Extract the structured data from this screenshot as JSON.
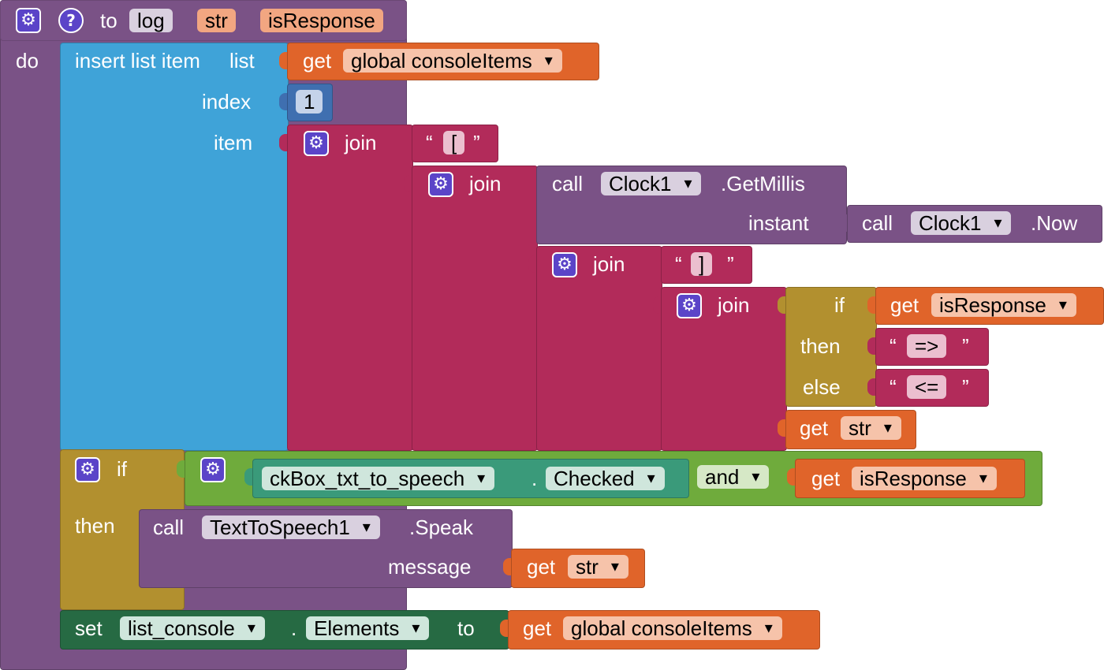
{
  "colors": {
    "procedure": "#7a5286",
    "list": "#3fa3d8",
    "math": "#3f6fb0",
    "text": "#b22b5a",
    "component": "#7a5286",
    "control": "#b2902f",
    "logic": "#6fab3c",
    "variable": "#e0642a",
    "setter": "#266a43",
    "field_light": "#d9d0df",
    "param_field": "#f2a681",
    "var_field": "#f6c3aa"
  },
  "icons": {
    "mutator": "gear-icon",
    "help": "question-mark-icon",
    "dropdown": "triangle-down-icon"
  },
  "procedure": {
    "to_label": "to",
    "name": "log",
    "params": [
      "str",
      "isResponse"
    ],
    "do_label": "do"
  },
  "insert": {
    "title": "insert list item",
    "list_label": "list",
    "index_label": "index",
    "item_label": "item",
    "get_label": "get",
    "list_var": "global consoleItems",
    "index_value": "1"
  },
  "join1": {
    "label": "join",
    "open_quote": "“",
    "close_quote": "”",
    "bracket_open": "[",
    "join2_label": "join",
    "call_label": "call",
    "clock1": "Clock1",
    "getmillis": ".GetMillis",
    "instant_label": "instant",
    "now": ".Now",
    "join3_label": "join",
    "bracket_close": "]",
    "join4_label": "join",
    "if_label": "if",
    "then_label": "then",
    "else_label": "else",
    "get_label": "get",
    "cond_var": "isResponse",
    "then_text": "=>",
    "else_text": "<=",
    "str_var": "str"
  },
  "if_block": {
    "if_label": "if",
    "then_label": "then",
    "component": "ckBox_txt_to_speech",
    "dot": ".",
    "property": "Checked",
    "and_label": "and",
    "get_label": "get",
    "var": "isResponse",
    "call_label": "call",
    "tts": "TextToSpeech1",
    "speak": ".Speak",
    "message_label": "message",
    "message_var": "str"
  },
  "set_block": {
    "set_label": "set",
    "component": "list_console",
    "dot": ".",
    "property": "Elements",
    "to_label": "to",
    "get_label": "get",
    "var": "global consoleItems"
  }
}
